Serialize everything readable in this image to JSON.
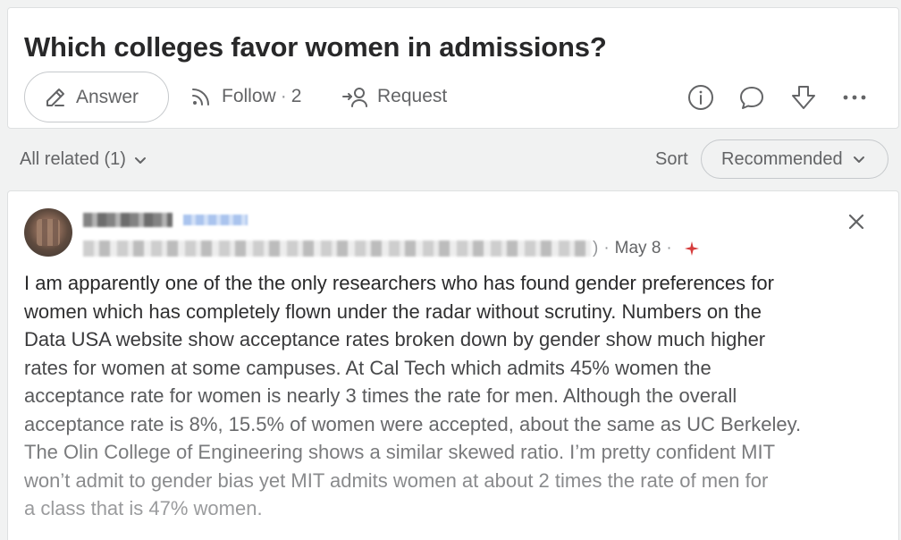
{
  "question": {
    "title": "Which colleges favor women in admissions?",
    "answer_label": "Answer",
    "follow_label": "Follow",
    "follow_separator": "·",
    "follow_count": "2",
    "request_label": "Request"
  },
  "filters": {
    "all_related_label": "All related (1)",
    "sort_label": "Sort",
    "sort_value": "Recommended"
  },
  "answer": {
    "date": "May 8",
    "meta_separator": "·",
    "credential_close_paren": ")",
    "body_lines": [
      "I am apparently one of the the only researchers who has found gender preferences for",
      "women which has completely flown under the radar without scrutiny. Numbers on the",
      "Data USA website show acceptance rates broken down by gender show much higher",
      "rates for women at some campuses. At Cal Tech which admits 45% women the",
      "acceptance rate for women is nearly 3 times the rate for men. Although the overall",
      "acceptance rate is 8%, 15.5% of women were accepted, about the same as UC Berkeley.",
      "The Olin College of Engineering shows a similar skewed ratio. I’m pretty confident MIT",
      "won’t admit to gender bias yet MIT admits women at about 2 times the rate of men for",
      "a class that is 47% women."
    ],
    "body_fade_colors": [
      "#282829",
      "#303031",
      "#3a3a3c",
      "#48494b",
      "#58595b",
      "#68696b",
      "#7a7b7d",
      "#8a8b8d",
      "#9a9b9d"
    ]
  },
  "colors": {
    "page_bg": "#f1f2f2",
    "card_bg": "#ffffff",
    "text_primary": "#282829",
    "text_secondary": "#636466",
    "sparkle": "#d63c3c"
  },
  "icons": [
    "edit-icon",
    "follow-icon",
    "request-icon",
    "info-icon",
    "comment-icon",
    "downvote-icon",
    "more-icon",
    "chevron-down-icon",
    "close-icon",
    "sparkle-icon"
  ]
}
